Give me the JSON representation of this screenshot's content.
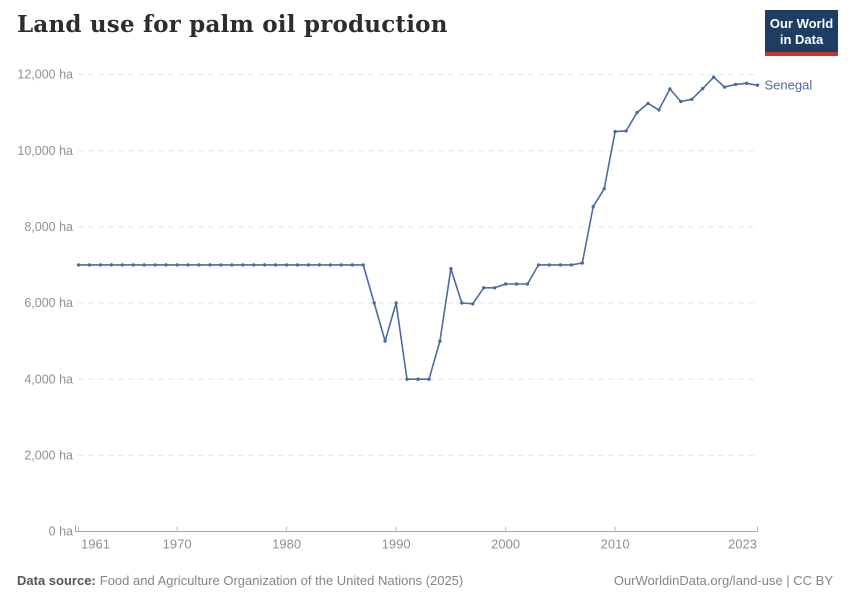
{
  "header": {
    "title": "Land use for palm oil production",
    "logo": {
      "line1": "Our World",
      "line2": "in Data"
    }
  },
  "chart_data": {
    "type": "line",
    "title": "Land use for palm oil production",
    "unit": "ha",
    "grid": "horizontal-dashed",
    "legend_position": "end-of-line-label",
    "xlim": [
      1961,
      2023
    ],
    "ylim": [
      0,
      12000
    ],
    "xticks": [
      1961,
      1970,
      1980,
      1990,
      2000,
      2010,
      2023
    ],
    "xtick_labels": [
      "1961",
      "1970",
      "1980",
      "1990",
      "2000",
      "2010",
      "2023"
    ],
    "yticks": [
      0,
      2000,
      4000,
      6000,
      8000,
      10000,
      12000
    ],
    "ytick_labels": [
      "0 ha",
      "2,000 ha",
      "4,000 ha",
      "6,000 ha",
      "8,000 ha",
      "10,000 ha",
      "12,000 ha"
    ],
    "series": [
      {
        "name": "Senegal",
        "color": "#4d6ba3",
        "years": [
          1961,
          1962,
          1963,
          1964,
          1965,
          1966,
          1967,
          1968,
          1969,
          1970,
          1971,
          1972,
          1973,
          1974,
          1975,
          1976,
          1977,
          1978,
          1979,
          1980,
          1981,
          1982,
          1983,
          1984,
          1985,
          1986,
          1987,
          1988,
          1989,
          1990,
          1991,
          1992,
          1993,
          1994,
          1995,
          1996,
          1997,
          1998,
          1999,
          2000,
          2001,
          2002,
          2003,
          2004,
          2005,
          2006,
          2007,
          2008,
          2009,
          2010,
          2011,
          2012,
          2013,
          2014,
          2015,
          2016,
          2017,
          2018,
          2019,
          2020,
          2021,
          2022,
          2023
        ],
        "values": [
          7000,
          7000,
          7000,
          7000,
          7000,
          7000,
          7000,
          7000,
          7000,
          7000,
          7000,
          7000,
          7000,
          7000,
          7000,
          7000,
          7000,
          7000,
          7000,
          7000,
          7000,
          7000,
          7000,
          7000,
          7000,
          7000,
          7000,
          6000,
          5000,
          6000,
          4000,
          4000,
          4000,
          5000,
          6900,
          6000,
          5980,
          6400,
          6400,
          6500,
          6500,
          6500,
          7000,
          7000,
          7000,
          7000,
          7050,
          8530,
          9000,
          10500,
          10520,
          11000,
          11240,
          11070,
          11620,
          11290,
          11350,
          11630,
          11930,
          11670,
          11740,
          11770,
          11720
        ]
      }
    ]
  },
  "footer": {
    "source_label": "Data source:",
    "source_text": "Food and Agriculture Organization of the United Nations (2025)",
    "rights": "OurWorldinData.org/land-use | CC BY"
  },
  "colors": {
    "line": "#4d6ba3",
    "logo_bg": "#1d3d63",
    "logo_red": "#d0342c",
    "grid": "#e2e2e2",
    "axis": "#a5a5a5",
    "tick_label": "#909090",
    "title": "#2d2d2d"
  }
}
